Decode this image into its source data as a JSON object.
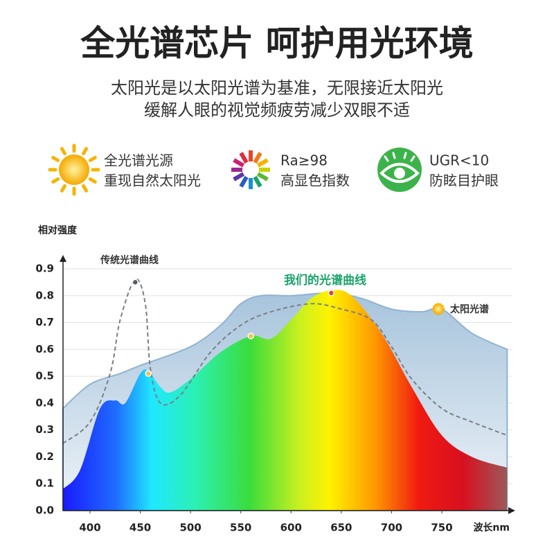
{
  "header": {
    "title": "全光谱芯片 呵护用光环境",
    "subtitle": [
      "太阳光是以太阳光谱为基准，无限接近太阳光",
      "缓解人眼的视觉频疲劳减少双眼不适"
    ]
  },
  "features": [
    {
      "line1": "全光谱光源",
      "line2": "重现自然太阳光"
    },
    {
      "line1": "Ra≥98",
      "line2": "高显色指数"
    },
    {
      "line1": "UGR<10",
      "line2": "防眩目护眼"
    }
  ],
  "chart_data": {
    "type": "area",
    "ylabel": "相对强度",
    "xlabel": "波长nm",
    "xlim": [
      373,
      818
    ],
    "ylim": [
      0,
      0.9
    ],
    "xticks": [
      400,
      450,
      500,
      550,
      600,
      650,
      700,
      750
    ],
    "yticks": [
      {
        "value": 0,
        "label": "0.0"
      },
      0.1,
      0.2,
      0.3,
      0.4,
      0.5,
      0.6,
      0.7,
      0.8,
      0.9
    ],
    "grid": true,
    "series": [
      {
        "name": "太阳光谱",
        "color": "#8fb3d3",
        "x": [
          373,
          400,
          430,
          450,
          500,
          530,
          550,
          570,
          600,
          640,
          670,
          700,
          730,
          750,
          780,
          815
        ],
        "values": [
          0.38,
          0.47,
          0.51,
          0.54,
          0.61,
          0.69,
          0.77,
          0.8,
          0.8,
          0.81,
          0.79,
          0.75,
          0.74,
          0.75,
          0.66,
          0.6
        ]
      },
      {
        "name": "传统光谱曲线",
        "color": "#7a7f86",
        "x": [
          373,
          400,
          420,
          430,
          445,
          455,
          460,
          470,
          490,
          520,
          550,
          580,
          620,
          650,
          680,
          700,
          720,
          750,
          780,
          815
        ],
        "values": [
          0.25,
          0.33,
          0.51,
          0.71,
          0.86,
          0.77,
          0.53,
          0.4,
          0.43,
          0.59,
          0.69,
          0.74,
          0.77,
          0.75,
          0.71,
          0.61,
          0.49,
          0.38,
          0.33,
          0.28
        ]
      },
      {
        "name": "我们的光谱曲线",
        "color": "#1aa36b",
        "x": [
          373,
          390,
          410,
          425,
          435,
          450,
          458,
          470,
          480,
          500,
          530,
          560,
          580,
          600,
          620,
          640,
          660,
          690,
          720,
          750,
          780,
          815
        ],
        "values": [
          0.08,
          0.15,
          0.38,
          0.41,
          0.4,
          0.51,
          0.52,
          0.46,
          0.44,
          0.49,
          0.59,
          0.65,
          0.64,
          0.71,
          0.79,
          0.82,
          0.8,
          0.66,
          0.46,
          0.28,
          0.2,
          0.16
        ]
      }
    ],
    "highlight_points": [
      {
        "x": 445,
        "y": 0.85,
        "color": "#555b63"
      },
      {
        "x": 458,
        "y": 0.51,
        "color": "#f2c14e"
      },
      {
        "x": 560,
        "y": 0.65,
        "color": "#f2c14e"
      },
      {
        "x": 640,
        "y": 0.81,
        "color": "#e8452c"
      }
    ]
  }
}
